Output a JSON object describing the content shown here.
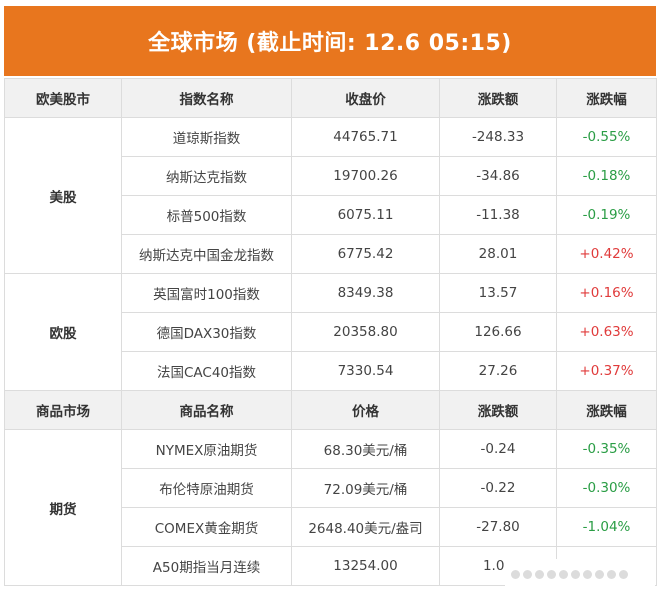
{
  "title": "全球市场 (截止时间: 12.6 05:15)",
  "colors": {
    "banner": "#e8761e",
    "up": "#e03b3b",
    "down": "#2a9d45",
    "header_bg": "#f1f1f1"
  },
  "stock_header": [
    "欧美股市",
    "指数名称",
    "收盘价",
    "涨跌额",
    "涨跌幅"
  ],
  "stock_groups": [
    {
      "name": "美股",
      "rows": [
        {
          "name": "道琼斯指数",
          "close": "44765.71",
          "change": "-248.33",
          "pct": "-0.55%",
          "dir": "down"
        },
        {
          "name": "纳斯达克指数",
          "close": "19700.26",
          "change": "-34.86",
          "pct": "-0.18%",
          "dir": "down"
        },
        {
          "name": "标普500指数",
          "close": "6075.11",
          "change": "-11.38",
          "pct": "-0.19%",
          "dir": "down"
        },
        {
          "name": "纳斯达克中国金龙指数",
          "close": "6775.42",
          "change": "28.01",
          "pct": "+0.42%",
          "dir": "up"
        }
      ]
    },
    {
      "name": "欧股",
      "rows": [
        {
          "name": "英国富时100指数",
          "close": "8349.38",
          "change": "13.57",
          "pct": "+0.16%",
          "dir": "up"
        },
        {
          "name": "德国DAX30指数",
          "close": "20358.80",
          "change": "126.66",
          "pct": "+0.63%",
          "dir": "up"
        },
        {
          "name": "法国CAC40指数",
          "close": "7330.54",
          "change": "27.26",
          "pct": "+0.37%",
          "dir": "up"
        }
      ]
    }
  ],
  "commodity_header": [
    "商品市场",
    "商品名称",
    "价格",
    "涨跌额",
    "涨跌幅"
  ],
  "commodity_groups": [
    {
      "name": "期货",
      "rows": [
        {
          "name": "NYMEX原油期货",
          "close": "68.30美元/桶",
          "change": "-0.24",
          "pct": "-0.35%",
          "dir": "down"
        },
        {
          "name": "布伦特原油期货",
          "close": "72.09美元/桶",
          "change": "-0.22",
          "pct": "-0.30%",
          "dir": "down"
        },
        {
          "name": "COMEX黄金期货",
          "close": "2648.40美元/盎司",
          "change": "-27.80",
          "pct": "-1.04%",
          "dir": "down"
        },
        {
          "name": "A50期指当月连续",
          "close": "13254.00",
          "change": "1.00",
          "pct": "",
          "dir": ""
        }
      ]
    }
  ]
}
